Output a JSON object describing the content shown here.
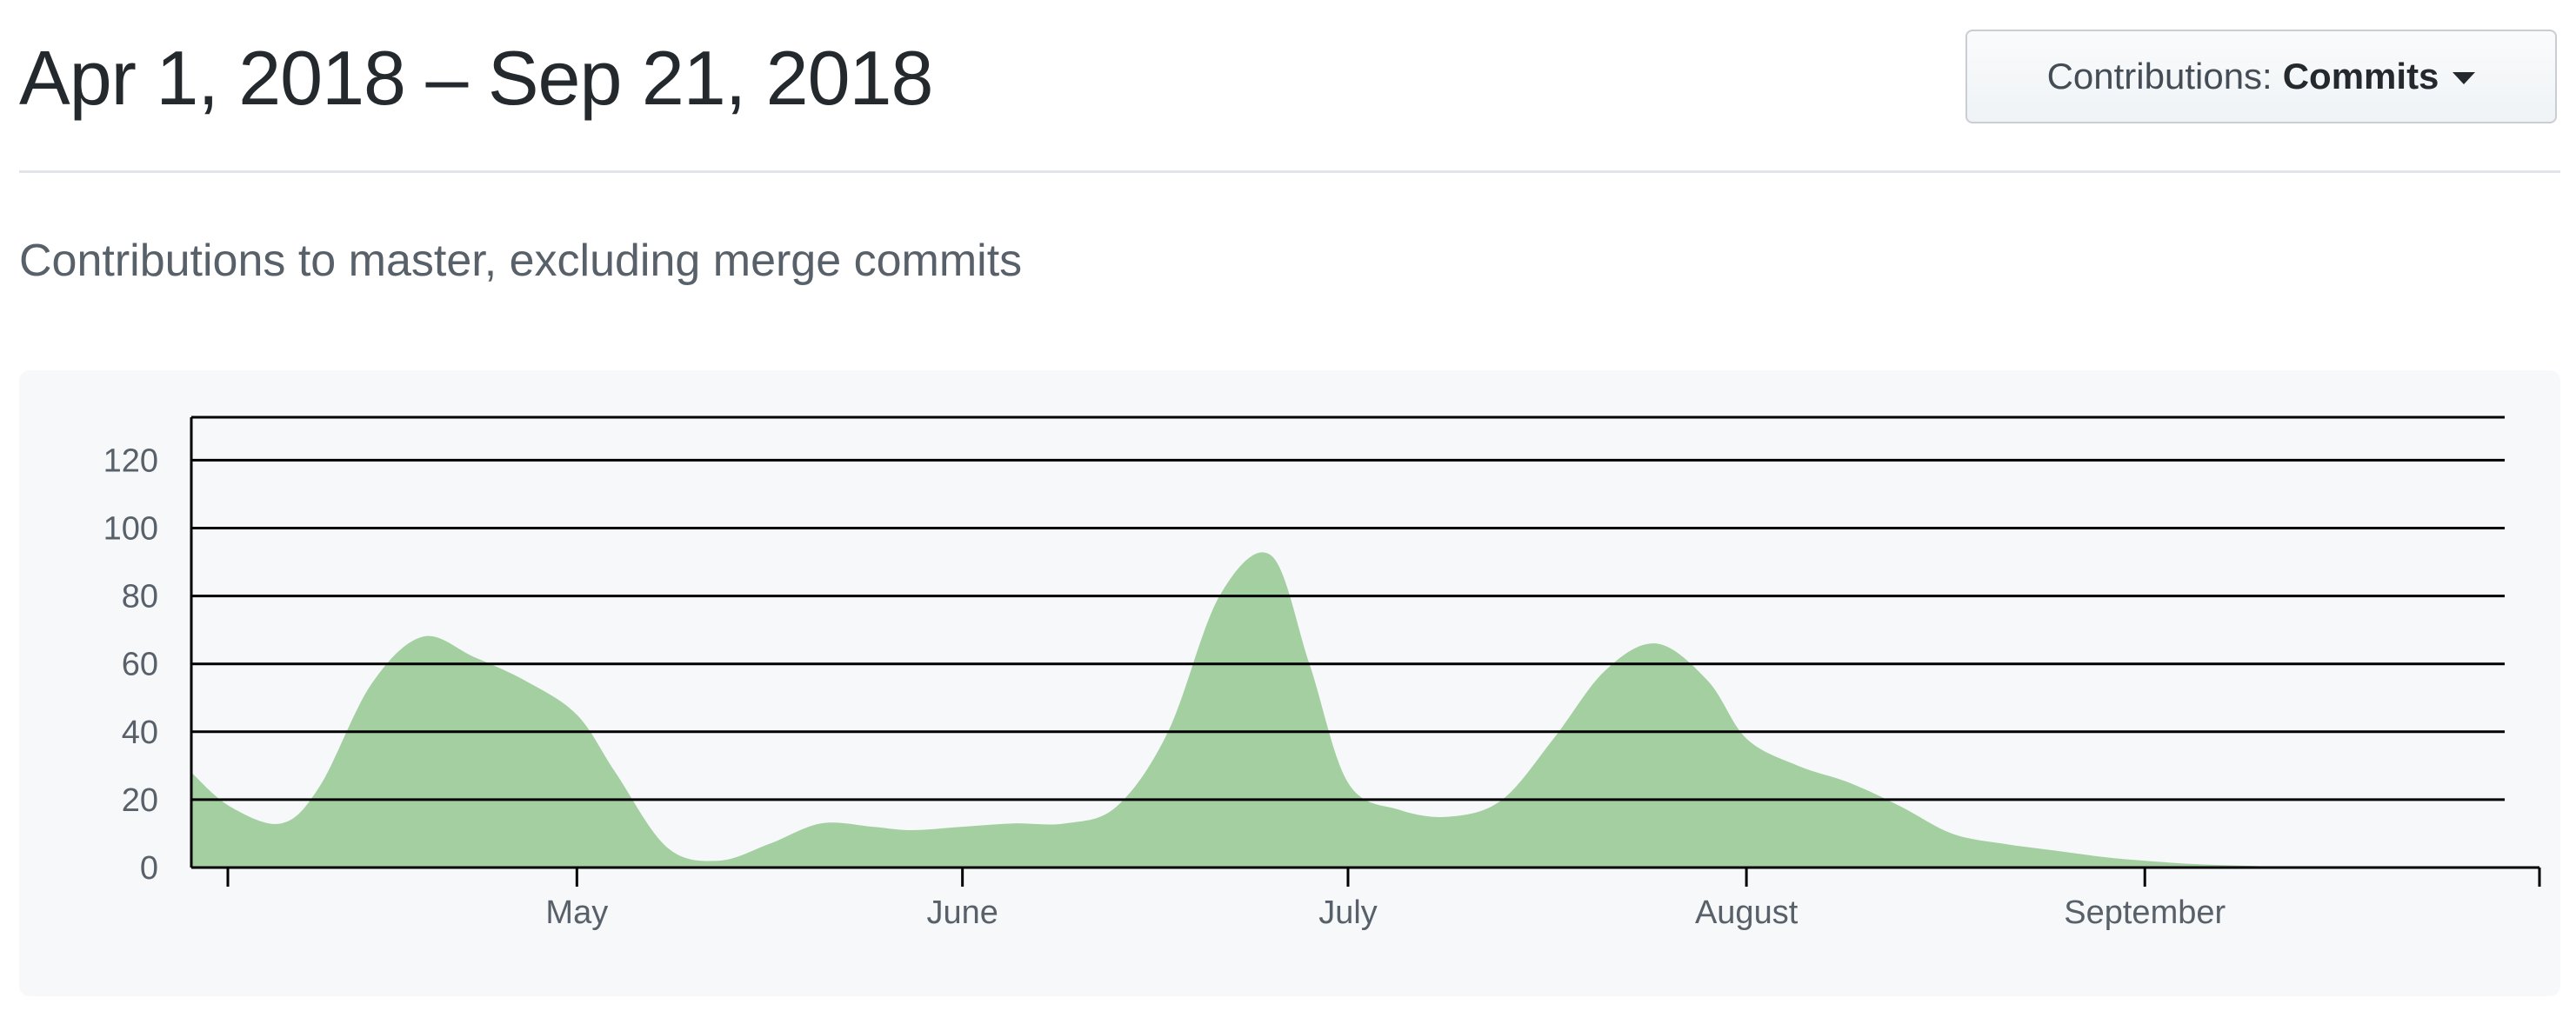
{
  "header": {
    "date_range": "Apr 1, 2018 – Sep 21, 2018",
    "contributions_label": "Contributions:",
    "contributions_value": "Commits",
    "caret_icon": "caret-down-icon"
  },
  "subtitle": "Contributions to master, excluding merge commits",
  "colors": {
    "area_fill": "#a3cfa1",
    "grid": "#000000",
    "chart_bg": "#f6f8fa"
  },
  "chart_data": {
    "type": "area",
    "title": "",
    "xlabel": "",
    "ylabel": "",
    "x_range": [
      "2018-04-01",
      "2018-09-28"
    ],
    "ylim": [
      0,
      126
    ],
    "yticks": [
      0,
      20,
      40,
      60,
      80,
      100,
      120
    ],
    "xtick_labels": [
      "May",
      "June",
      "July",
      "August",
      "September"
    ],
    "xtick_dates": [
      "2018-05-01",
      "2018-05-31",
      "2018-06-30",
      "2018-07-31",
      "2018-08-31"
    ],
    "grid": true,
    "x": [
      "2018-04-01",
      "2018-04-04",
      "2018-04-08",
      "2018-04-11",
      "2018-04-15",
      "2018-04-19",
      "2018-04-23",
      "2018-04-27",
      "2018-05-01",
      "2018-05-04",
      "2018-05-08",
      "2018-05-12",
      "2018-05-16",
      "2018-05-20",
      "2018-05-24",
      "2018-05-27",
      "2018-05-31",
      "2018-06-04",
      "2018-06-08",
      "2018-06-12",
      "2018-06-16",
      "2018-06-20",
      "2018-06-24",
      "2018-06-27",
      "2018-06-30",
      "2018-07-04",
      "2018-07-08",
      "2018-07-12",
      "2018-07-16",
      "2018-07-20",
      "2018-07-24",
      "2018-07-28",
      "2018-07-31",
      "2018-08-04",
      "2018-08-08",
      "2018-08-12",
      "2018-08-16",
      "2018-08-20",
      "2018-08-24",
      "2018-08-28",
      "2018-08-31",
      "2018-09-04",
      "2018-09-08",
      "2018-09-12",
      "2018-09-16",
      "2018-09-21"
    ],
    "series": [
      {
        "values": [
          28,
          18,
          13,
          24,
          54,
          68,
          62,
          55,
          45,
          28,
          6,
          2,
          7,
          13,
          12,
          11,
          12,
          13,
          13,
          18,
          40,
          80,
          92,
          60,
          25,
          17,
          15,
          20,
          38,
          58,
          66,
          55,
          38,
          30,
          25,
          18,
          10,
          7,
          5,
          3,
          2,
          1,
          0.5,
          0,
          0,
          0
        ]
      }
    ]
  }
}
